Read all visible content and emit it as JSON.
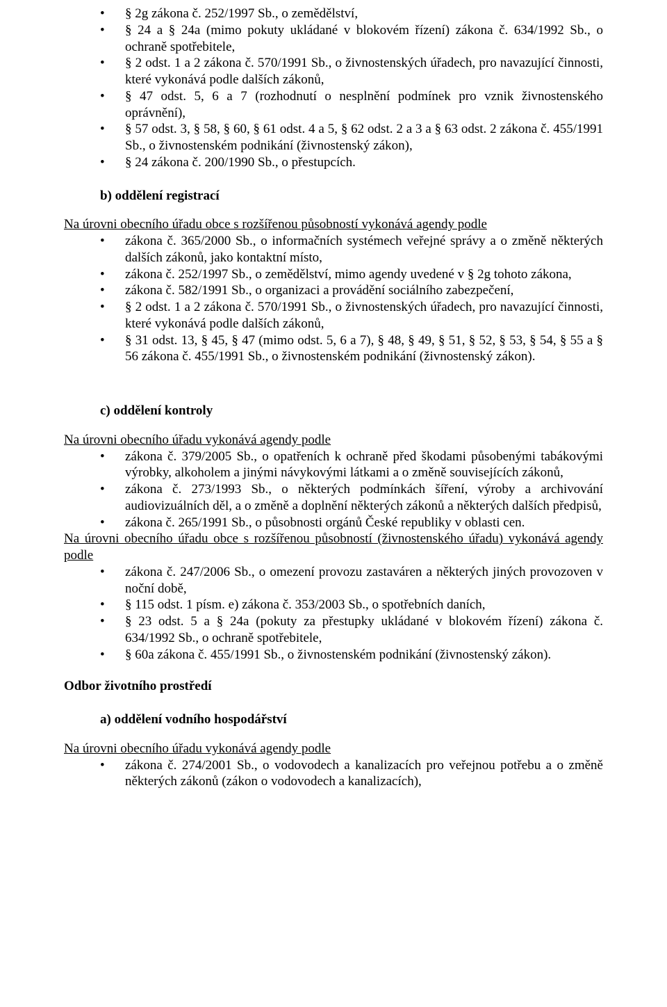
{
  "listA": {
    "items": [
      "§ 2g zákona č. 252/1997 Sb., o zemědělství,",
      "§ 24 a § 24a (mimo pokuty ukládané v blokovém řízení) zákona č. 634/1992 Sb., o ochraně spotřebitele,",
      "§ 2 odst. 1 a 2 zákona č. 570/1991 Sb., o živnostenských úřadech, pro navazující činnosti, které vykonává podle dalších zákonů,",
      "§ 47 odst. 5, 6 a 7 (rozhodnutí o nesplnění podmínek pro vznik živnostenského oprávnění),",
      "§ 57 odst. 3, § 58, § 60, § 61 odst. 4 a 5, § 62 odst. 2 a 3 a § 63 odst. 2 zákona č. 455/1991 Sb., o živnostenském podnikání (živnostenský zákon),",
      "§ 24 zákona č. 200/1990 Sb., o přestupcích."
    ]
  },
  "b": {
    "heading": "b)   oddělení registrací",
    "intro": "Na úrovni obecního úřadu obce s rozšířenou působností vykonává agendy podle",
    "items": [
      "zákona č. 365/2000 Sb., o informačních systémech veřejné správy a o změně některých dalších zákonů, jako kontaktní místo,",
      "zákona č. 252/1997 Sb., o zemědělství, mimo agendy uvedené v § 2g tohoto zákona,",
      "zákona č. 582/1991 Sb., o organizaci a provádění sociálního zabezpečení,",
      "§ 2 odst. 1 a 2 zákona č. 570/1991 Sb., o živnostenských úřadech, pro navazující činnosti, které vykonává podle dalších zákonů,",
      "§ 31 odst. 13, § 45, § 47 (mimo odst. 5, 6 a 7), § 48, § 49, § 51, § 52, § 53, § 54, § 55 a § 56 zákona č. 455/1991 Sb., o živnostenském podnikání (živnostenský zákon)."
    ]
  },
  "c": {
    "heading": "c)   oddělení kontroly",
    "intro1": "Na úrovni obecního úřadu vykonává agendy podle",
    "items1": [
      "zákona č. 379/2005 Sb., o opatřeních k ochraně před škodami působenými tabákovými výrobky, alkoholem a jinými návykovými látkami a o změně souvisejících zákonů,",
      "zákona č. 273/1993 Sb., o některých podmínkách šíření, výroby a archivování audiovizuálních děl, a o změně a doplnění některých zákonů a některých dalších předpisů,",
      "zákona č. 265/1991 Sb., o působnosti orgánů České republiky v oblasti cen."
    ],
    "intro2": "Na úrovni obecního úřadu obce s rozšířenou působností (živnostenského úřadu) vykonává agendy podle",
    "items2": [
      "zákona č. 247/2006 Sb., o omezení provozu zastaváren a některých jiných provozoven v noční době,",
      "§ 115 odst. 1 písm. e) zákona č. 353/2003 Sb., o spotřebních daních,",
      "§ 23 odst. 5 a § 24a (pokuty za přestupky ukládané v blokovém řízení) zákona č. 634/1992 Sb., o ochraně spotřebitele,",
      "§ 60a zákona č. 455/1991 Sb., o živnostenském podnikání (živnostenský zákon)."
    ]
  },
  "env": {
    "title": "Odbor životního prostředí",
    "a_heading": "a)   oddělení vodního hospodářství",
    "intro": "Na úrovni obecního úřadu vykonává agendy podle",
    "items": [
      "zákona č. 274/2001 Sb., o vodovodech a kanalizacích pro veřejnou potřebu a o změně některých zákonů (zákon o vodovodech a kanalizacích),"
    ]
  }
}
